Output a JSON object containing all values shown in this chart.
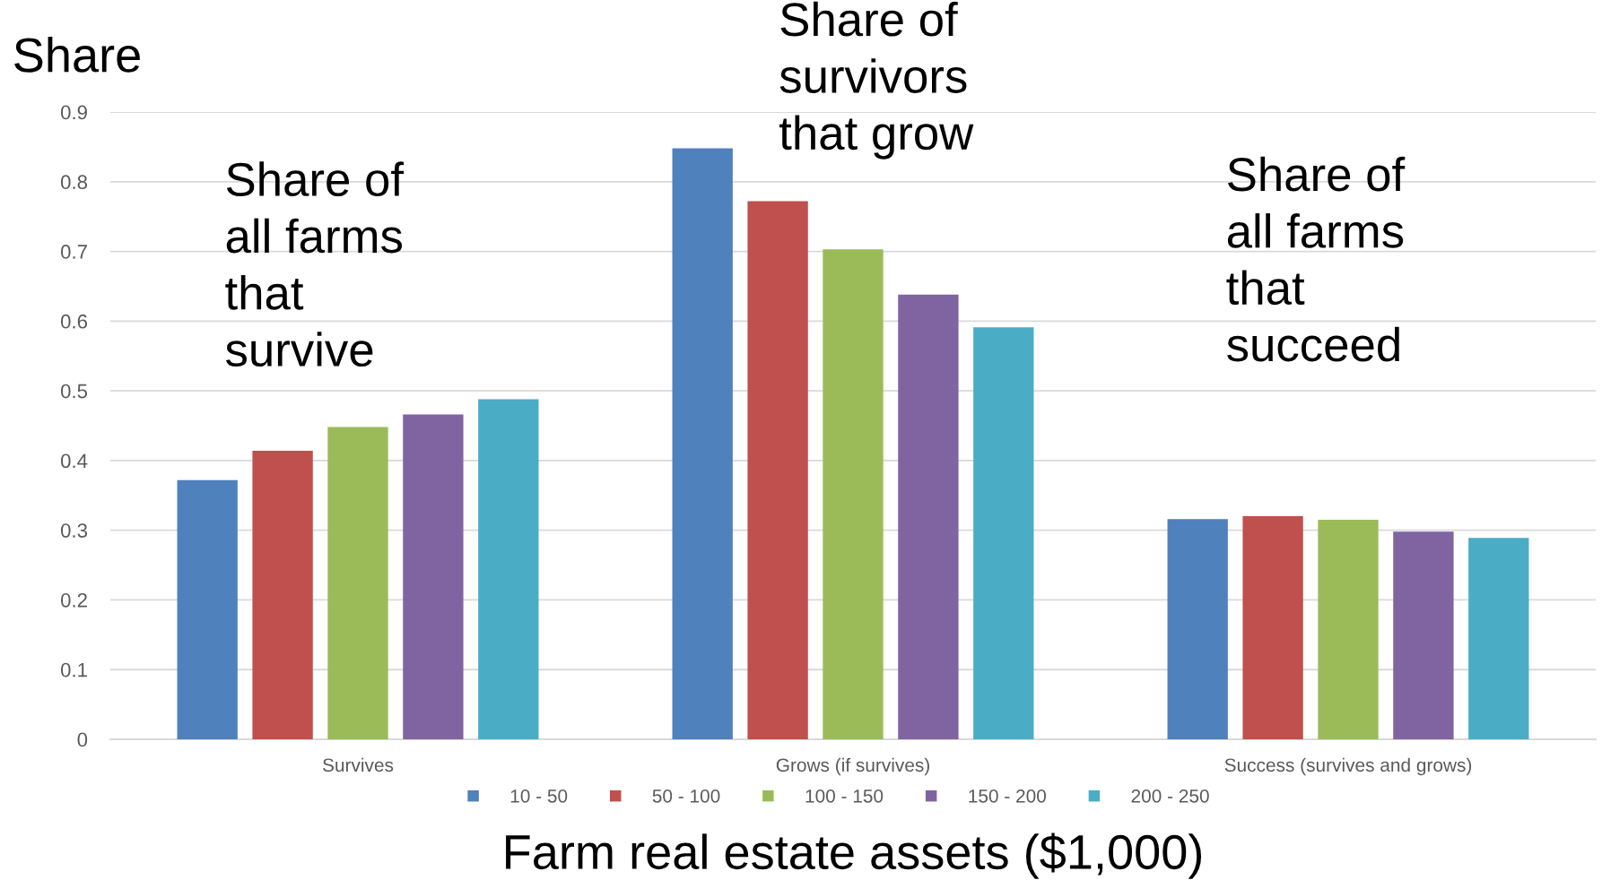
{
  "chart_data": {
    "type": "bar",
    "categories": [
      "Survives",
      "Grows (if survives)",
      "Success (survives and grows)"
    ],
    "series": [
      {
        "name": "10 - 50",
        "color": "#4f81bd",
        "values": [
          0.372,
          0.848,
          0.316
        ]
      },
      {
        "name": "50 - 100",
        "color": "#c0504d",
        "values": [
          0.414,
          0.772,
          0.32
        ]
      },
      {
        "name": "100 - 150",
        "color": "#9bbb59",
        "values": [
          0.448,
          0.703,
          0.315
        ]
      },
      {
        "name": "150 - 200",
        "color": "#8064a2",
        "values": [
          0.466,
          0.638,
          0.298
        ]
      },
      {
        "name": "200 - 250",
        "color": "#4bacc6",
        "values": [
          0.488,
          0.591,
          0.289
        ]
      }
    ],
    "ylabel": "Share",
    "xlabel": "Farm real estate assets ($1,000)",
    "ylim": [
      0,
      0.9
    ],
    "yticks": [
      0,
      0.1,
      0.2,
      0.3,
      0.4,
      0.5,
      0.6,
      0.7,
      0.8,
      0.9
    ],
    "annotations": [
      "Share of\nall farms\nthat\nsurvive",
      "Share of\nsurvivors\nthat grow",
      "Share of\nall farms\nthat\nsucceed"
    ],
    "grid": "y",
    "legend": "bottom"
  }
}
